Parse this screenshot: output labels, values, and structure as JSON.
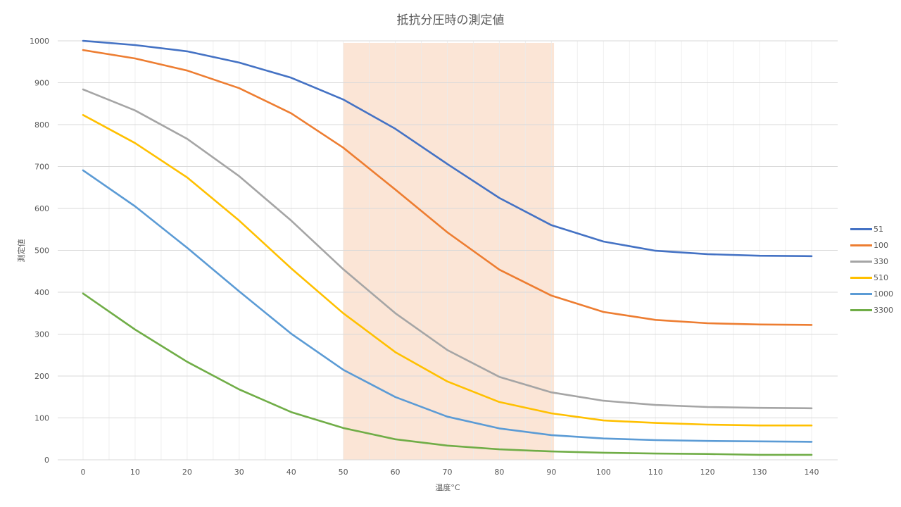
{
  "chart_data": {
    "type": "line",
    "title": "抵抗分圧時の測定値",
    "xlabel": "温度°C",
    "ylabel": "測定値",
    "x": [
      0,
      10,
      20,
      30,
      40,
      50,
      60,
      70,
      80,
      90,
      100,
      110,
      120,
      130,
      140
    ],
    "ylim": [
      0,
      1000
    ],
    "yticks": [
      0,
      100,
      200,
      300,
      400,
      500,
      600,
      700,
      800,
      900,
      1000
    ],
    "grid": true,
    "legend_position": "right",
    "highlight_band": {
      "x_from": 50,
      "x_to": 90.5,
      "y_from": 0,
      "y_to": 995,
      "color": "#FBE5D6"
    },
    "series": [
      {
        "name": "51",
        "color": "#4472C4",
        "values": [
          1000,
          990,
          975,
          948,
          912,
          860,
          790,
          706,
          625,
          560,
          521,
          499,
          491,
          487,
          486
        ]
      },
      {
        "name": "100",
        "color": "#ED7D31",
        "values": [
          978,
          958,
          929,
          887,
          827,
          745,
          645,
          543,
          454,
          392,
          353,
          334,
          326,
          323,
          322
        ]
      },
      {
        "name": "330",
        "color": "#A5A5A5",
        "values": [
          884,
          834,
          766,
          677,
          571,
          455,
          350,
          262,
          198,
          161,
          141,
          131,
          126,
          124,
          123
        ]
      },
      {
        "name": "510",
        "color": "#FFC000",
        "values": [
          823,
          756,
          674,
          571,
          457,
          350,
          257,
          187,
          138,
          111,
          94,
          88,
          84,
          82,
          82
        ]
      },
      {
        "name": "1000",
        "color": "#5B9BD5",
        "values": [
          691,
          605,
          506,
          402,
          301,
          215,
          150,
          103,
          75,
          59,
          51,
          47,
          45,
          44,
          43
        ]
      },
      {
        "name": "3300",
        "color": "#70AD47",
        "values": [
          397,
          311,
          234,
          168,
          114,
          76,
          49,
          34,
          25,
          20,
          17,
          15,
          14,
          12,
          12
        ]
      }
    ]
  }
}
